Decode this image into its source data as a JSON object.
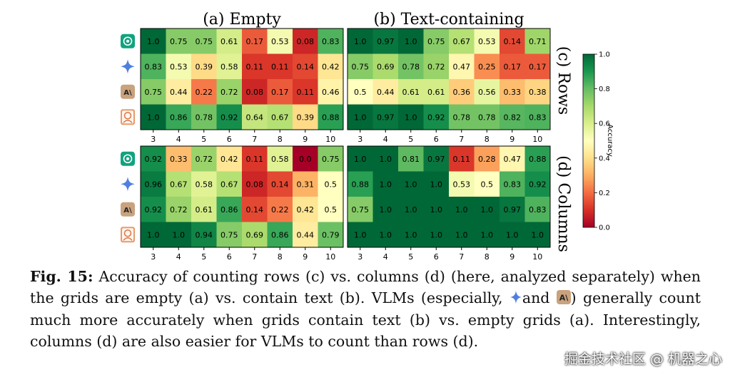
{
  "chart_data": {
    "type": "heatmap",
    "panels": [
      {
        "id": "a-rows",
        "title": "(a) Empty",
        "x": [
          "3",
          "4",
          "5",
          "6",
          "7",
          "8",
          "9",
          "10"
        ],
        "rows": [
          "chatgpt",
          "gemini",
          "claude",
          "human"
        ],
        "values": [
          [
            1.0,
            0.75,
            0.75,
            0.61,
            0.17,
            0.53,
            0.08,
            0.83
          ],
          [
            0.83,
            0.53,
            0.39,
            0.58,
            0.11,
            0.11,
            0.14,
            0.42
          ],
          [
            0.75,
            0.44,
            0.22,
            0.72,
            0.08,
            0.17,
            0.11,
            0.46
          ],
          [
            1.0,
            0.86,
            0.78,
            0.92,
            0.64,
            0.67,
            0.39,
            0.88
          ]
        ]
      },
      {
        "id": "b-rows",
        "title": "(b) Text-containing",
        "x": [
          "3",
          "4",
          "5",
          "6",
          "7",
          "8",
          "9",
          "10"
        ],
        "rows": [
          "chatgpt",
          "gemini",
          "claude",
          "human"
        ],
        "values": [
          [
            1.0,
            0.97,
            1.0,
            0.75,
            0.67,
            0.53,
            0.14,
            0.71
          ],
          [
            0.75,
            0.69,
            0.78,
            0.72,
            0.47,
            0.25,
            0.17,
            0.17
          ],
          [
            0.5,
            0.44,
            0.61,
            0.61,
            0.36,
            0.56,
            0.33,
            0.38
          ],
          [
            1.0,
            0.97,
            1.0,
            0.92,
            0.78,
            0.78,
            0.82,
            0.83
          ]
        ]
      },
      {
        "id": "a-cols",
        "x": [
          "3",
          "4",
          "5",
          "6",
          "7",
          "8",
          "9",
          "10"
        ],
        "rows": [
          "chatgpt",
          "gemini",
          "claude",
          "human"
        ],
        "values": [
          [
            0.92,
            0.33,
            0.72,
            0.42,
            0.11,
            0.58,
            0.0,
            0.75
          ],
          [
            0.96,
            0.67,
            0.58,
            0.67,
            0.08,
            0.14,
            0.31,
            0.5
          ],
          [
            0.92,
            0.72,
            0.61,
            0.86,
            0.14,
            0.22,
            0.42,
            0.5
          ],
          [
            1.0,
            1.0,
            0.94,
            0.75,
            0.69,
            0.86,
            0.44,
            0.79
          ]
        ]
      },
      {
        "id": "b-cols",
        "x": [
          "3",
          "4",
          "5",
          "6",
          "7",
          "8",
          "9",
          "10"
        ],
        "rows": [
          "chatgpt",
          "gemini",
          "claude",
          "human"
        ],
        "values": [
          [
            1.0,
            1.0,
            0.81,
            0.97,
            0.11,
            0.28,
            0.47,
            0.88
          ],
          [
            0.88,
            1.0,
            1.0,
            1.0,
            0.53,
            0.5,
            0.83,
            0.92
          ],
          [
            0.75,
            1.0,
            1.0,
            1.0,
            1.0,
            1.0,
            0.97,
            0.83
          ],
          [
            1.0,
            1.0,
            1.0,
            1.0,
            1.0,
            1.0,
            1.0,
            1.0
          ]
        ]
      }
    ],
    "side_labels": [
      "(c) Rows",
      "(d) Columns"
    ],
    "colorbar": {
      "label": "Accuracy",
      "range": [
        0.0,
        1.0
      ],
      "ticks": [
        "0.0",
        "0.2",
        "0.4",
        "0.6",
        "0.8",
        "1.0"
      ],
      "colormap": "RdYlGn"
    }
  },
  "caption": {
    "label": "Fig. 15:",
    "part1": " Accuracy of counting rows (c) vs. columns (d) (here, analyzed separately) when the grids are empty (a) vs. contain text (b). VLMs (especially, ",
    "part2": "and ",
    "part3": ") generally count much more accurately when grids contain text (b) vs. empty grids (a). Interestingly, columns (d) are also easier for VLMs to count than rows (d)."
  },
  "watermark": "掘金技术社区 @ 机器之心",
  "colors": {
    "chatgpt": "#10a37f",
    "gemini": "#4f7fe0",
    "claude": "#c9a27e",
    "human": "#e89b6d"
  }
}
